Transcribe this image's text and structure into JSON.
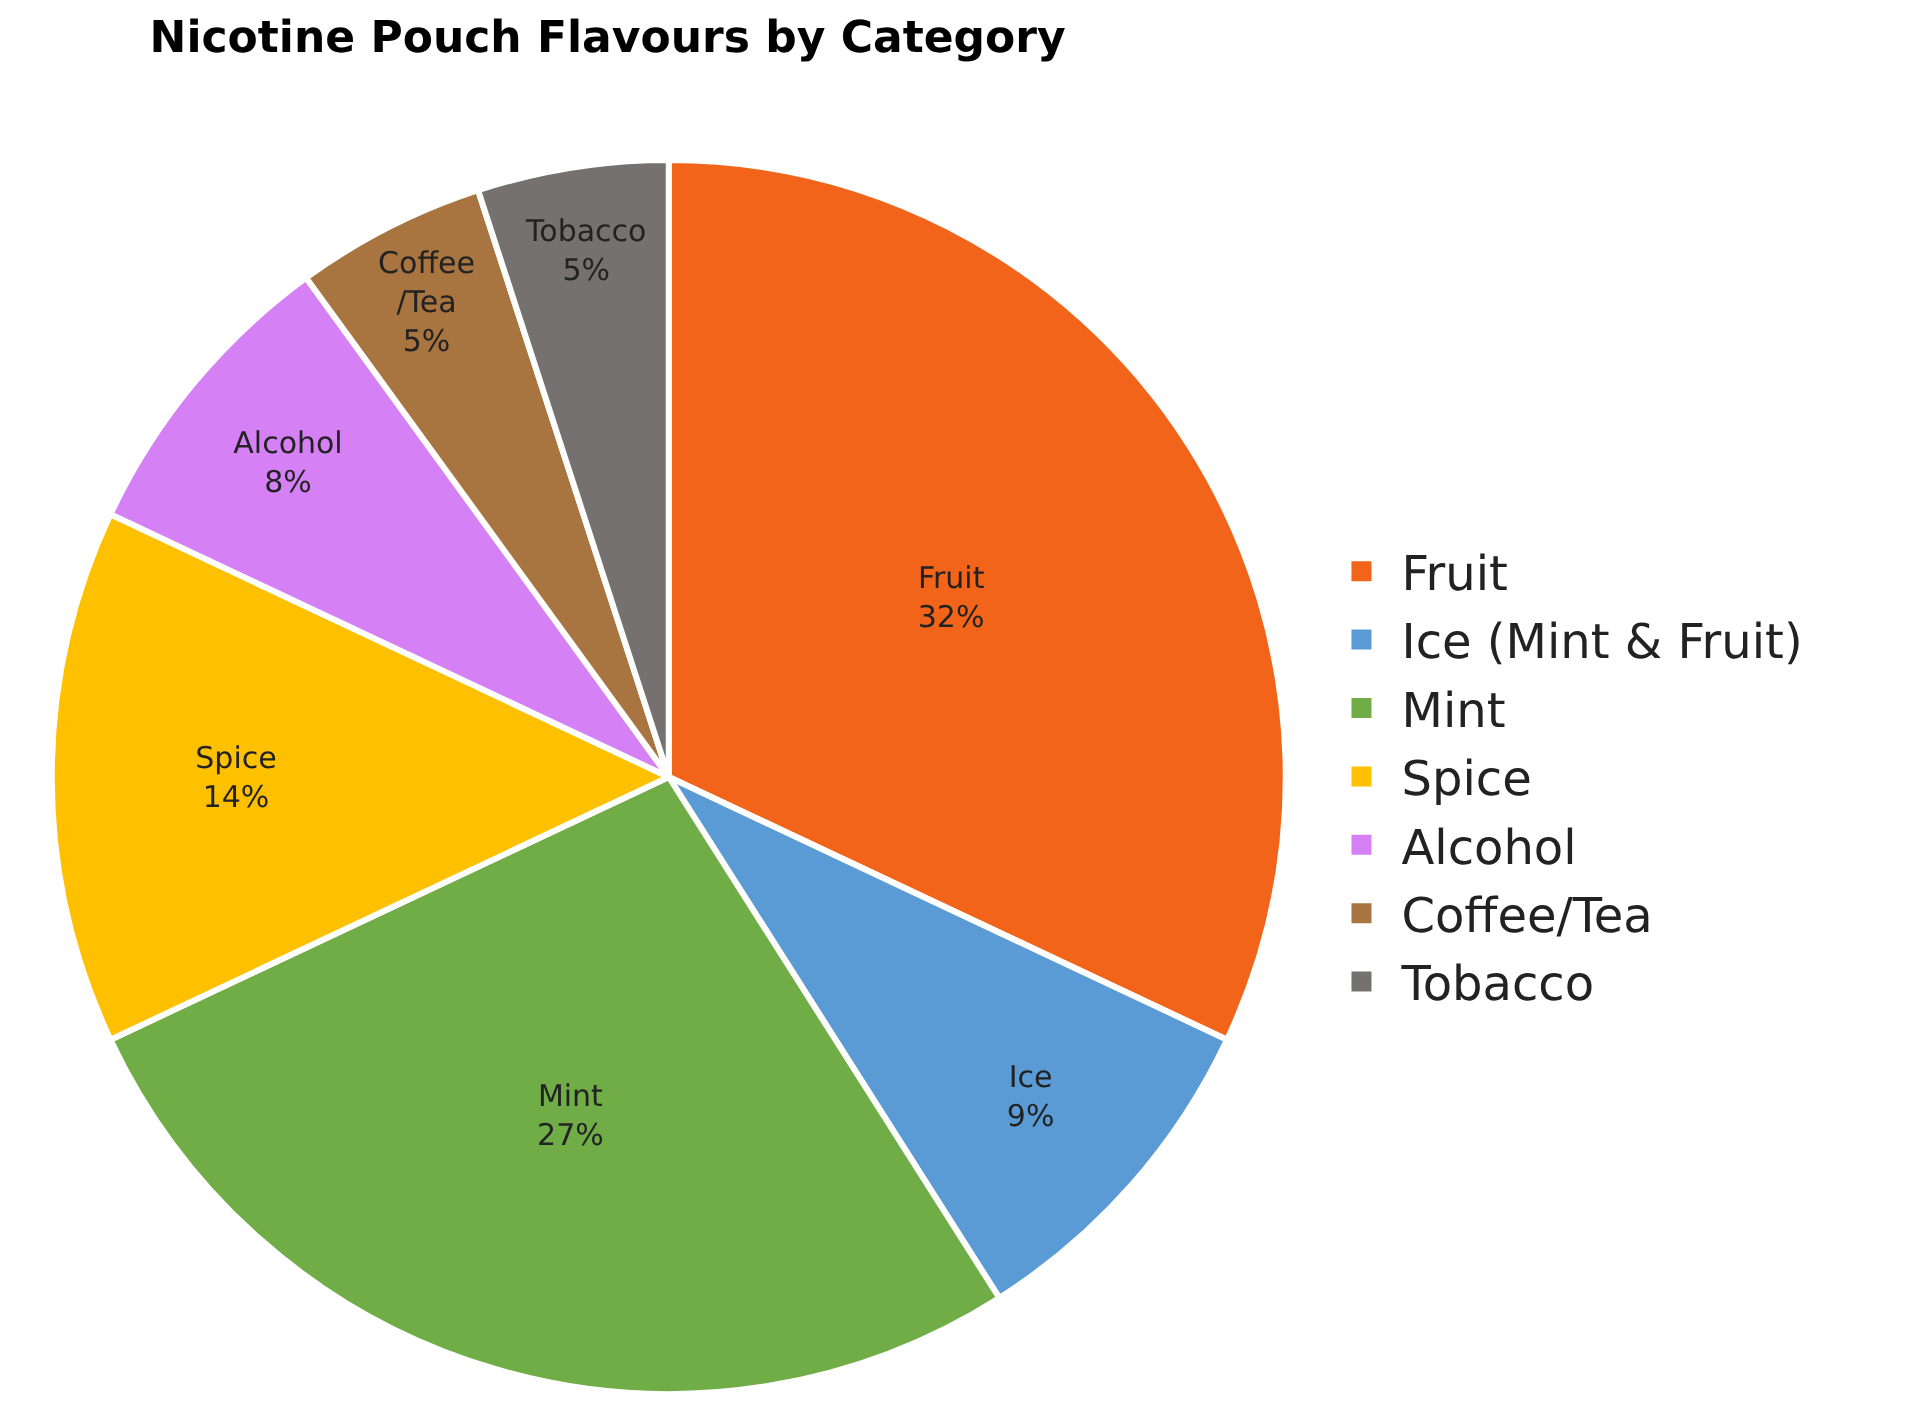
{
  "chart_data": {
    "type": "pie",
    "title": "Nicotine Pouch Flavours by Category",
    "categories": [
      "Fruit",
      "Ice (Mint & Fruit)",
      "Mint",
      "Spice",
      "Alcohol",
      "Coffee/Tea",
      "Tobacco"
    ],
    "values": [
      32,
      9,
      27,
      14,
      8,
      5,
      5
    ],
    "value_labels": [
      "Fruit\n32%",
      "Ice\n9%",
      "Mint\n27%",
      "Spice\n14%",
      "Alcohol\n8%",
      "Coffee\n/Tea\n5%",
      "Tobacco\n5%"
    ],
    "colors": [
      "#f26419",
      "#5b9bd5",
      "#70ad47",
      "#ffc000",
      "#d580f5",
      "#a8743f",
      "#767171"
    ],
    "legend": "right"
  }
}
